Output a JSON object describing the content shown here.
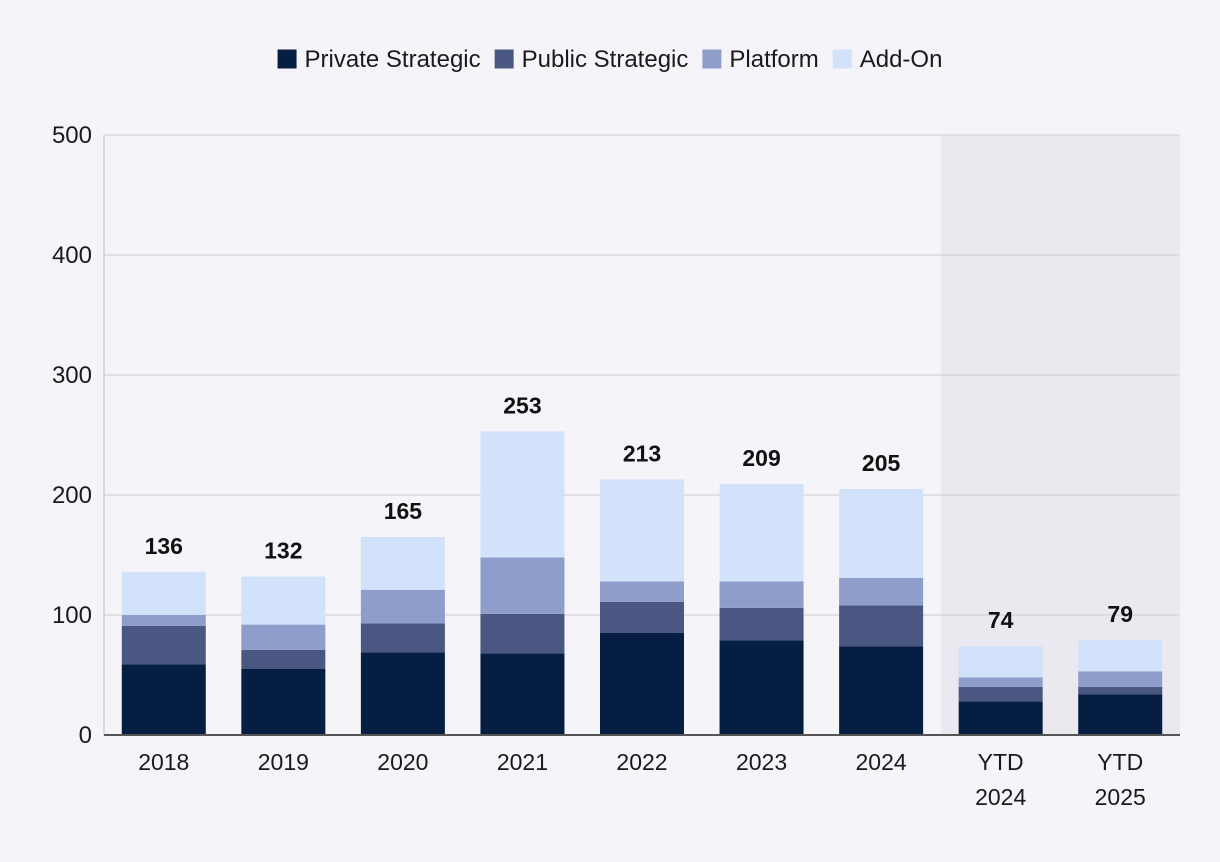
{
  "chart_data": {
    "type": "bar",
    "stacked": true,
    "categories": [
      "2018",
      "2019",
      "2020",
      "2021",
      "2022",
      "2023",
      "2024",
      "YTD\n2024",
      "YTD\n2025"
    ],
    "series": [
      {
        "name": "Private Strategic",
        "color": "#061e42",
        "values": [
          59,
          55,
          69,
          68,
          85,
          79,
          74,
          28,
          34
        ]
      },
      {
        "name": "Public Strategic",
        "color": "#4a5782",
        "values": [
          32,
          16,
          24,
          33,
          26,
          27,
          34,
          12,
          6
        ]
      },
      {
        "name": "Platform",
        "color": "#8f9dcb",
        "values": [
          9,
          21,
          28,
          47,
          17,
          22,
          23,
          8,
          13
        ]
      },
      {
        "name": "Add-On",
        "color": "#d3e2fb",
        "values": [
          36,
          40,
          44,
          105,
          85,
          81,
          74,
          26,
          26
        ]
      }
    ],
    "totals": [
      136,
      132,
      165,
      253,
      213,
      209,
      205,
      74,
      79
    ],
    "ylim": [
      0,
      500
    ],
    "yticks": [
      0,
      100,
      200,
      300,
      400,
      500
    ],
    "highlight_categories": [
      "YTD\n2024",
      "YTD\n2025"
    ],
    "highlight_color": "#eae9ef",
    "grid": true,
    "legend_position": "top-center",
    "title": "",
    "xlabel": "",
    "ylabel": ""
  }
}
